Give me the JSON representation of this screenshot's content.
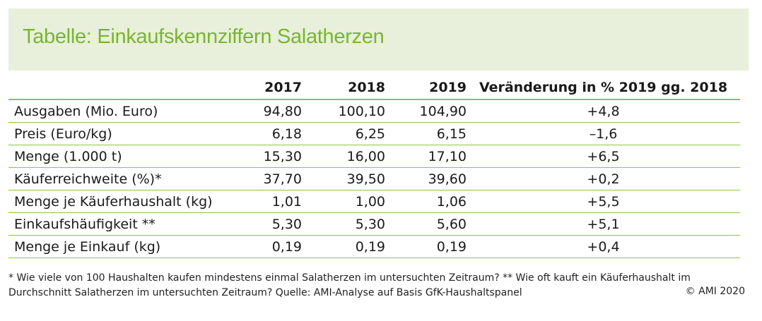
{
  "title": "Tabelle: Einkaufskennziffern Salatherzen",
  "columns": {
    "c2017": "2017",
    "c2018": "2018",
    "c2019": "2019",
    "change": "Veränderung in % 2019 gg. 2018"
  },
  "rows": [
    {
      "label": "Ausgaben (Mio. Euro)",
      "v2017": "94,80",
      "v2018": "100,10",
      "v2019": "104,90",
      "change": "+4,8"
    },
    {
      "label": "Preis (Euro/kg)",
      "v2017": "6,18",
      "v2018": "6,25",
      "v2019": "6,15",
      "change": "–1,6"
    },
    {
      "label": "Menge (1.000 t)",
      "v2017": "15,30",
      "v2018": "16,00",
      "v2019": "17,10",
      "change": "+6,5"
    },
    {
      "label": "Käuferreichweite (%)*",
      "v2017": "37,70",
      "v2018": "39,50",
      "v2019": "39,60",
      "change": "+0,2"
    },
    {
      "label": "Menge je Käuferhaushalt (kg)",
      "v2017": "1,01",
      "v2018": "1,00",
      "v2019": "1,06",
      "change": "+5,5"
    },
    {
      "label": "Einkaufshäufigkeit **",
      "v2017": "5,30",
      "v2018": "5,30",
      "v2019": "5,60",
      "change": "+5,1"
    },
    {
      "label": "Menge je Einkauf (kg)",
      "v2017": "0,19",
      "v2018": "0,19",
      "v2019": "0,19",
      "change": "+0,4"
    }
  ],
  "footnote": "* Wie viele von 100 Haushalten kaufen mindestens einmal Salatherzen im untersuchten Zeitraum? ** Wie oft kauft ein Käuferhaushalt im Durchschnitt Salatherzen im untersuchten Zeitraum? Quelle: AMI-Analyse auf Basis GfK-Haushaltspanel",
  "copyright": "© AMI 2020",
  "colors": {
    "accent": "#8ec63f",
    "title": "#7ab530",
    "band": "#e8f0dc"
  }
}
